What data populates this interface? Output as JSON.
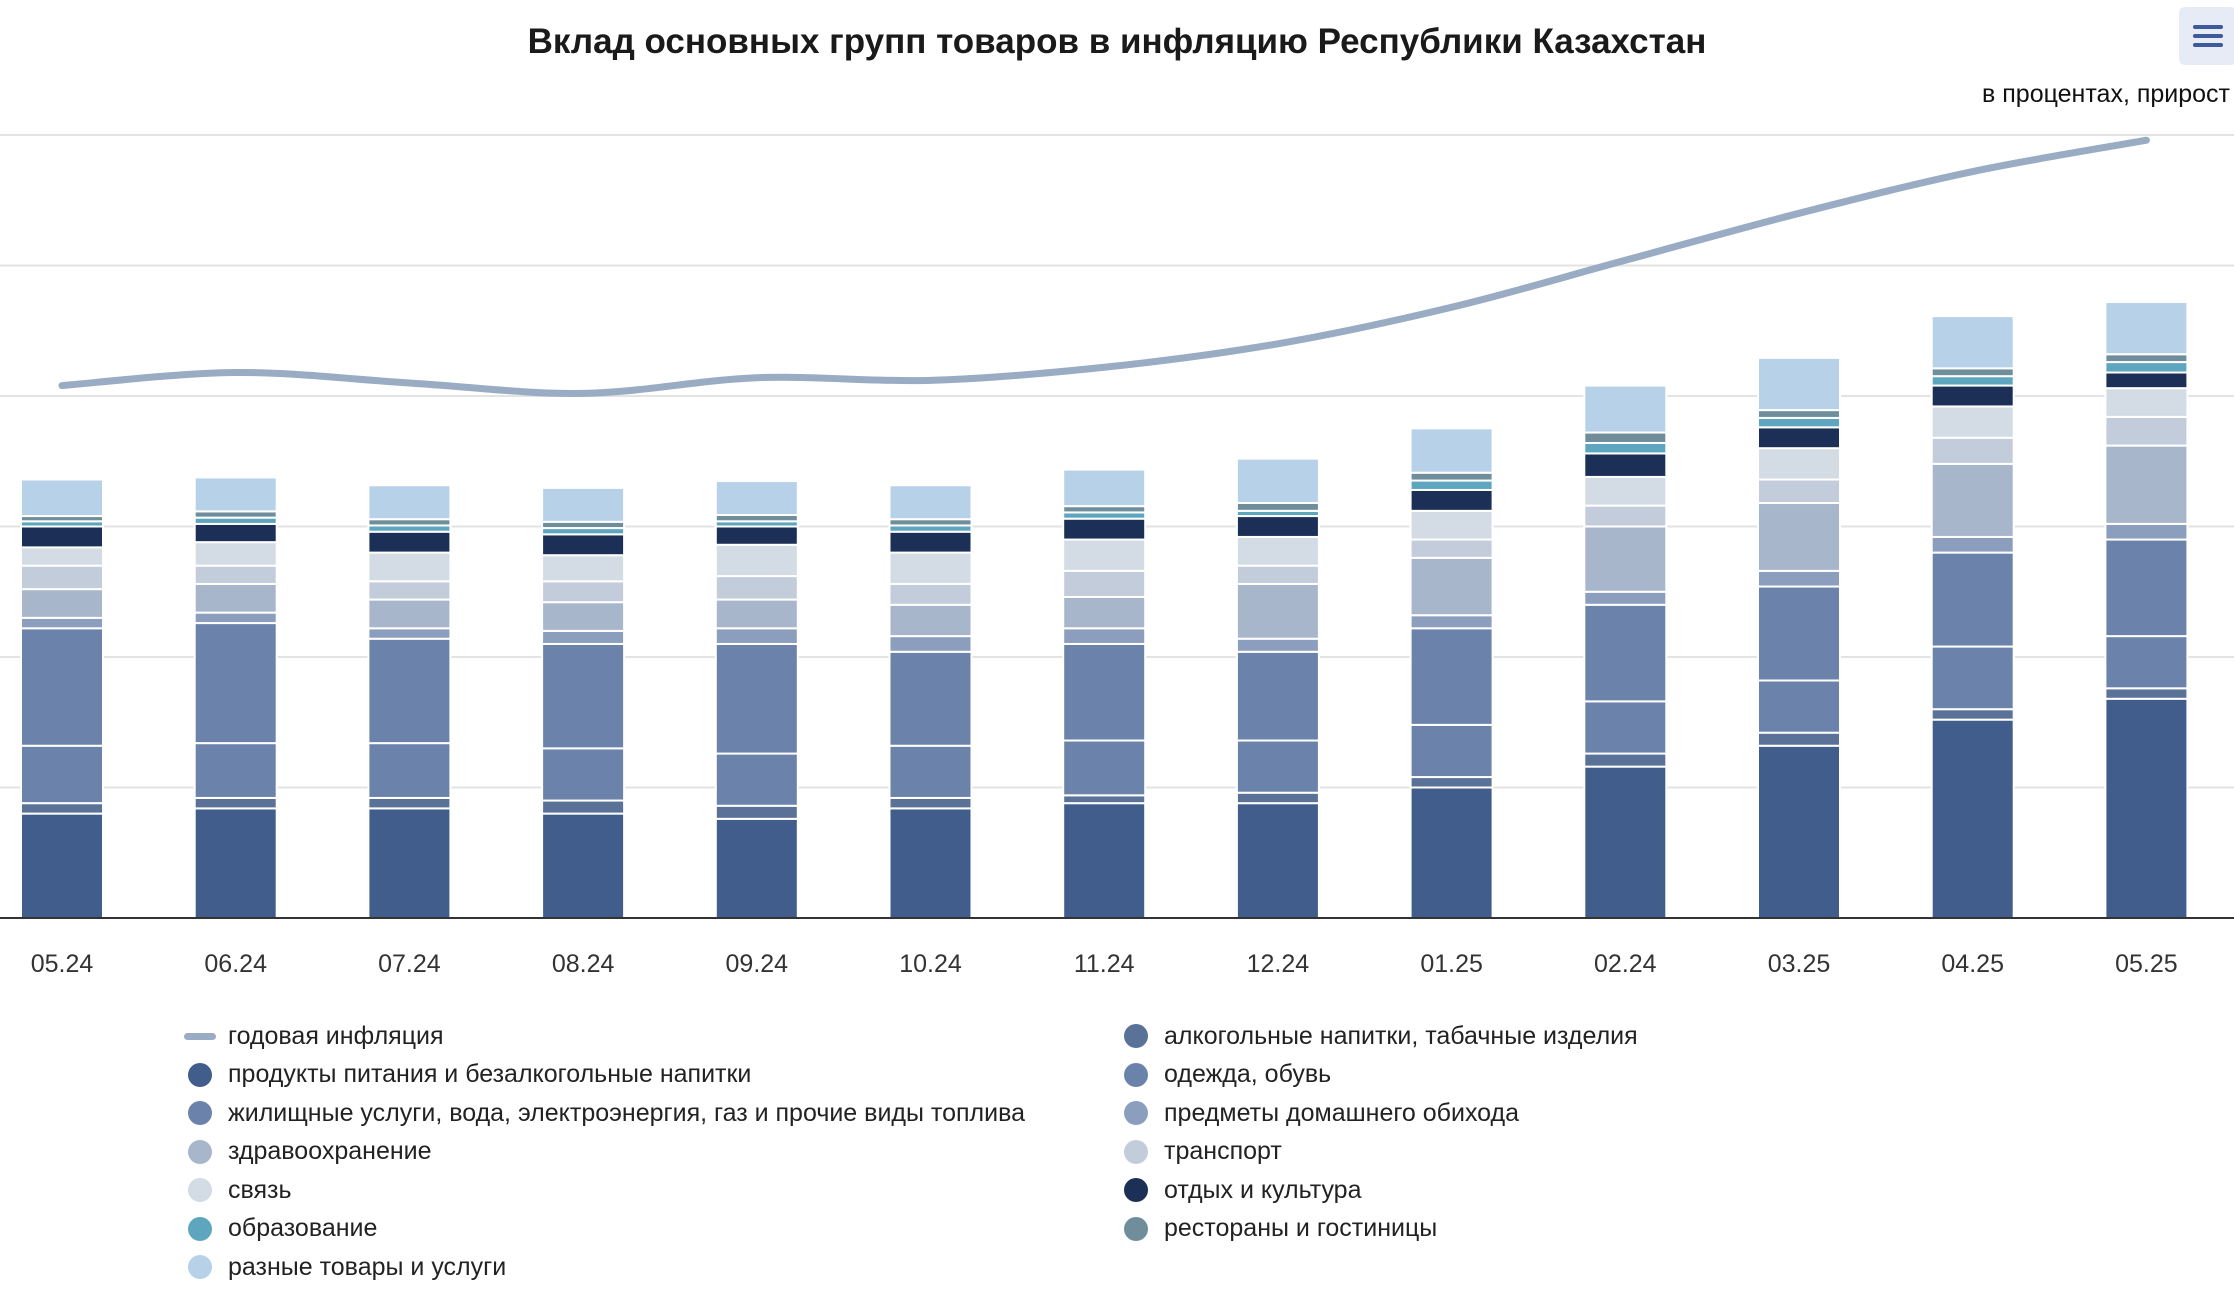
{
  "title": "Вклад основных групп товаров в инфляцию Республики Казахстан",
  "subtitle": "в процентах, прирост",
  "menu": {
    "icon": "hamburger-menu-icon"
  },
  "chart_data": {
    "type": "bar",
    "stacked": true,
    "categories": [
      "05.24",
      "06.24",
      "07.24",
      "08.24",
      "09.24",
      "10.24",
      "11.24",
      "12.24",
      "01.25",
      "02.24",
      "03.25",
      "04.25",
      "05.25"
    ],
    "ylim": [
      0,
      15
    ],
    "grid": true,
    "y_tick_labels_visible": false,
    "legend_position": "bottom",
    "series": [
      {
        "name": "продукты питания и безалкогольные напитки",
        "color": "#415d8c",
        "values": [
          2.0,
          2.1,
          2.1,
          2.0,
          1.9,
          2.1,
          2.2,
          2.2,
          2.5,
          2.9,
          3.3,
          3.8,
          4.2
        ]
      },
      {
        "name": "алкогольные напитки, табачные изделия",
        "color": "#5a7198",
        "values": [
          0.2,
          0.2,
          0.2,
          0.25,
          0.25,
          0.2,
          0.15,
          0.2,
          0.2,
          0.25,
          0.25,
          0.2,
          0.2
        ]
      },
      {
        "name": "жилищные услуги, вода, электроэнергия, газ и прочие виды топлива",
        "color": "#6b83aa",
        "values": [
          1.1,
          1.05,
          1.05,
          1.0,
          1.0,
          1.0,
          1.05,
          1.0,
          1.0,
          1.0,
          1.0,
          1.2,
          1.0
        ]
      },
      {
        "name": "одежда, обувь",
        "color": "#6b83aa",
        "values": [
          2.25,
          2.3,
          2.0,
          2.0,
          2.1,
          1.8,
          1.85,
          1.7,
          1.85,
          1.85,
          1.8,
          1.8,
          1.85
        ]
      },
      {
        "name": "предметы домашнего обихода",
        "color": "#8c9ebd",
        "values": [
          0.2,
          0.2,
          0.2,
          0.25,
          0.3,
          0.3,
          0.3,
          0.25,
          0.25,
          0.25,
          0.3,
          0.3,
          0.3
        ]
      },
      {
        "name": "здравоохранение",
        "color": "#a8b6cc",
        "values": [
          0.55,
          0.55,
          0.55,
          0.55,
          0.55,
          0.6,
          0.6,
          1.05,
          1.1,
          1.25,
          1.3,
          1.4,
          1.5
        ]
      },
      {
        "name": "транспорт",
        "color": "#c3ccda",
        "values": [
          0.45,
          0.35,
          0.35,
          0.4,
          0.45,
          0.4,
          0.5,
          0.35,
          0.35,
          0.4,
          0.45,
          0.5,
          0.55
        ]
      },
      {
        "name": "связь",
        "color": "#d3dbe5",
        "values": [
          0.35,
          0.45,
          0.55,
          0.5,
          0.6,
          0.6,
          0.6,
          0.55,
          0.55,
          0.55,
          0.6,
          0.6,
          0.55
        ]
      },
      {
        "name": "отдых и культура",
        "color": "#1c2f56",
        "values": [
          0.4,
          0.35,
          0.4,
          0.4,
          0.35,
          0.4,
          0.4,
          0.4,
          0.4,
          0.45,
          0.4,
          0.4,
          0.3
        ]
      },
      {
        "name": "образование",
        "color": "#5ea6c0",
        "values": [
          0.1,
          0.12,
          0.12,
          0.12,
          0.1,
          0.12,
          0.12,
          0.1,
          0.18,
          0.2,
          0.18,
          0.18,
          0.2
        ]
      },
      {
        "name": "рестораны и гостиницы",
        "color": "#6f8d9a",
        "values": [
          0.1,
          0.12,
          0.12,
          0.12,
          0.12,
          0.12,
          0.12,
          0.15,
          0.15,
          0.2,
          0.15,
          0.15,
          0.15
        ]
      },
      {
        "name": "разные товары и услуги",
        "color": "#b7d1e9",
        "values": [
          0.7,
          0.65,
          0.65,
          0.65,
          0.65,
          0.65,
          0.7,
          0.85,
          0.85,
          0.9,
          1.0,
          1.0,
          1.0
        ]
      }
    ],
    "line": {
      "name": "годовая инфляция",
      "color": "#9aabc4",
      "values": [
        10.2,
        10.45,
        10.25,
        10.05,
        10.35,
        10.3,
        10.55,
        11.0,
        11.7,
        12.6,
        13.5,
        14.3,
        14.9
      ]
    }
  },
  "legend_order": [
    {
      "name": "годовая инфляция",
      "kind": "line",
      "color": "#9aabc4"
    },
    {
      "name": "продукты питания и безалкогольные напитки",
      "kind": "dot",
      "color": "#415d8c"
    },
    {
      "name": "жилищные услуги, вода, электроэнергия, газ и прочие виды топлива",
      "kind": "dot",
      "color": "#6b83aa"
    },
    {
      "name": "здравоохранение",
      "kind": "dot",
      "color": "#a8b6cc"
    },
    {
      "name": "связь",
      "kind": "dot",
      "color": "#d3dbe5"
    },
    {
      "name": "образование",
      "kind": "dot",
      "color": "#5ea6c0"
    },
    {
      "name": "разные товары и услуги",
      "kind": "dot",
      "color": "#b7d1e9"
    },
    {
      "name": "алкогольные напитки, табачные изделия",
      "kind": "dot",
      "color": "#5a7198"
    },
    {
      "name": "одежда, обувь",
      "kind": "dot",
      "color": "#6b83aa"
    },
    {
      "name": "предметы домашнего обихода",
      "kind": "dot",
      "color": "#8c9ebd"
    },
    {
      "name": "транспорт",
      "kind": "dot",
      "color": "#c3ccda"
    },
    {
      "name": "отдых и культура",
      "kind": "dot",
      "color": "#1c2f56"
    },
    {
      "name": "рестораны и гостиницы",
      "kind": "dot",
      "color": "#6f8d9a"
    }
  ]
}
